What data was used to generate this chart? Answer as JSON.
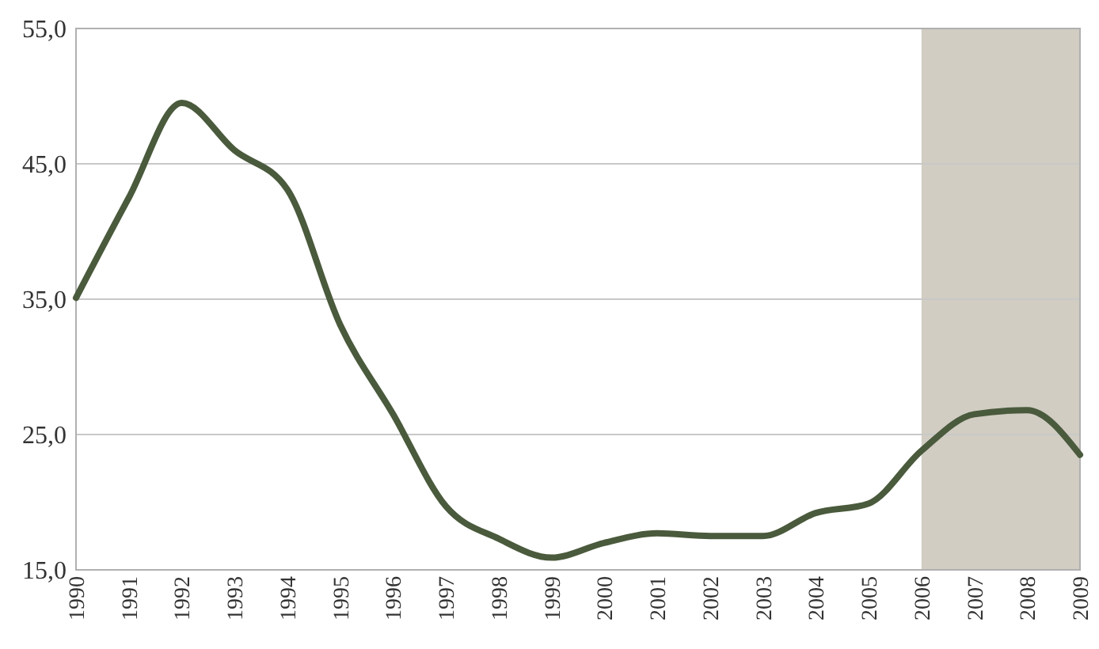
{
  "chart_data": {
    "type": "line",
    "categories": [
      "1990",
      "1991",
      "1992",
      "1993",
      "1994",
      "1995",
      "1996",
      "1997",
      "1998",
      "1999",
      "2000",
      "2001",
      "2002",
      "2003",
      "2004",
      "2005",
      "2006",
      "2007",
      "2008",
      "2009"
    ],
    "series": [
      {
        "color": "#4a5a3c",
        "values": [
          35.1,
          42.5,
          49.5,
          46.0,
          43.1,
          33.1,
          26.5,
          19.7,
          17.3,
          15.9,
          17.0,
          17.7,
          17.5,
          17.5,
          19.2,
          19.9,
          23.8,
          26.5,
          26.8,
          23.5
        ]
      }
    ],
    "ylim": [
      15,
      55
    ],
    "yticks": [
      {
        "value": 15,
        "label": "15,0"
      },
      {
        "value": 25,
        "label": "25,0"
      },
      {
        "value": 35,
        "label": "35,0"
      },
      {
        "value": 45,
        "label": "45,0"
      },
      {
        "value": 55,
        "label": "55,0"
      }
    ],
    "grid": "y",
    "bands": [
      {
        "axis": "x",
        "from": "2006",
        "to": "2009",
        "color": "#d1cdc3"
      }
    ],
    "marker": "none",
    "line_style": "solid"
  }
}
